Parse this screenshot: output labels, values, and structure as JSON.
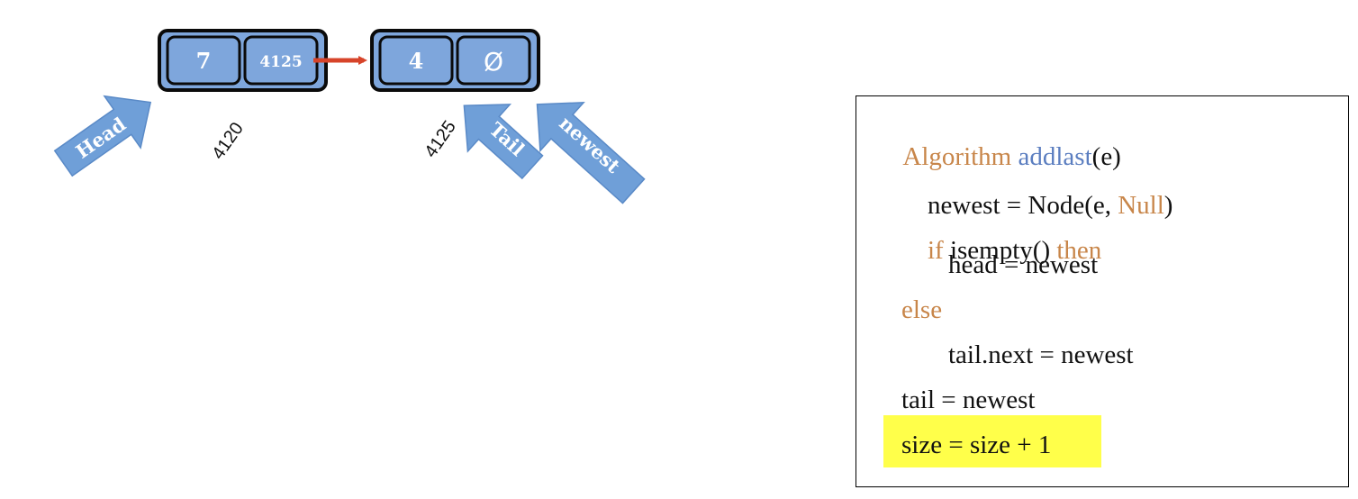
{
  "nodes": [
    {
      "data": "7",
      "next": "4125"
    },
    {
      "data": "4",
      "next": "Ø"
    }
  ],
  "addresses": [
    "4120",
    "4125"
  ],
  "pointers": {
    "head": "Head",
    "tail": "Tail",
    "newest": "newest"
  },
  "colors": {
    "node_fill": "#7ea6dc",
    "node_border": "#0a0a0a",
    "arrow": "#d7442a",
    "pointer_fill": "#6f9fd8",
    "keyword": "#c8864a",
    "function": "#5b7ec0",
    "highlight": "#ffff4a"
  },
  "algorithm": {
    "l1": {
      "keyword": "Algorithm",
      "name": "addlast",
      "args": "(e)"
    },
    "l2": {
      "pre": "newest = Node(e, ",
      "keyword": "Null",
      "post": ")"
    },
    "l3": {
      "keyword_if": "if",
      "cond": " isempty() ",
      "keyword_then": "then"
    },
    "l4": "head = newest",
    "l5": "else",
    "l6": "tail.next = newest",
    "l7": "tail = newest",
    "l8": "size = size + 1"
  }
}
